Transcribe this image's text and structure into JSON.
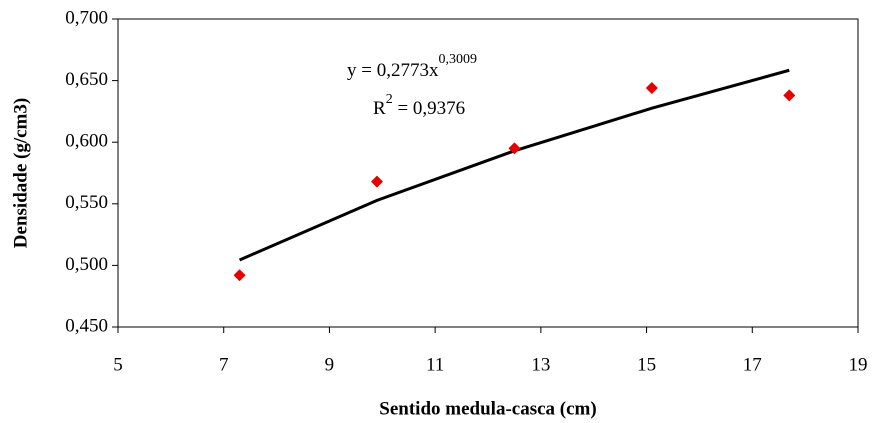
{
  "chart_data": {
    "type": "scatter",
    "x_label": "Sentido medula-casca (cm)",
    "y_label": "Densidade (g/cm3)",
    "x": [
      7.3,
      9.9,
      12.5,
      15.1,
      17.7
    ],
    "values": [
      0.492,
      0.568,
      0.595,
      0.644,
      0.638
    ],
    "color": "#e60000",
    "trendline": {
      "x": [
        7.3,
        9.9,
        12.5,
        15.1,
        17.7
      ],
      "values": [
        0.5044,
        0.5528,
        0.593,
        0.6276,
        0.6584
      ],
      "color": "#000000"
    },
    "equation": {
      "base": "y = 0,2773x",
      "exponent": "0,3009"
    },
    "r_squared": {
      "base": "R",
      "exponent": "2",
      "rest": " = 0,9376"
    },
    "xlim": [
      5,
      19
    ],
    "xticks": [
      5,
      7,
      9,
      11,
      13,
      15,
      17,
      19
    ],
    "ylim": [
      0.45,
      0.7
    ],
    "yticks": [
      {
        "value": 0.45,
        "label": "0,450"
      },
      {
        "value": 0.5,
        "label": "0,500"
      },
      {
        "value": 0.55,
        "label": "0,550"
      },
      {
        "value": 0.6,
        "label": "0,600"
      },
      {
        "value": 0.65,
        "label": "0,650"
      },
      {
        "value": 0.7,
        "label": "0,700"
      }
    ],
    "grid": false
  }
}
